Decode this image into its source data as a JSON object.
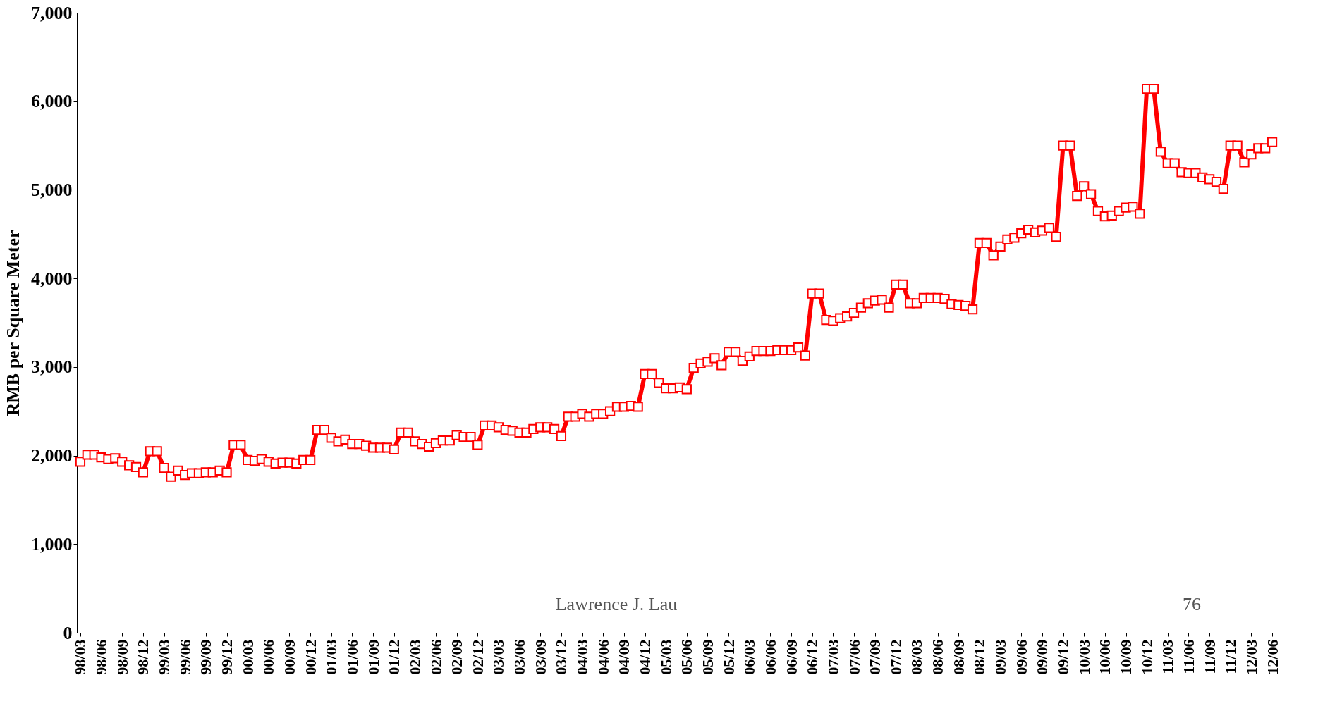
{
  "chart_data": {
    "type": "line",
    "ylabel": "RMB per Square Meter",
    "categories": [
      "98/03",
      null,
      null,
      "98/06",
      null,
      null,
      "98/09",
      null,
      null,
      "98/12",
      null,
      null,
      "99/03",
      null,
      null,
      "99/06",
      null,
      null,
      "99/09",
      null,
      null,
      "99/12",
      null,
      null,
      "00/03",
      null,
      null,
      "00/06",
      null,
      null,
      "00/09",
      null,
      null,
      "00/12",
      null,
      null,
      "01/03",
      null,
      null,
      "01/06",
      null,
      null,
      "01/09",
      null,
      null,
      "01/12",
      null,
      null,
      "02/03",
      null,
      null,
      "02/06",
      null,
      null,
      "02/09",
      null,
      null,
      "02/12",
      null,
      null,
      "03/03",
      null,
      null,
      "03/06",
      null,
      null,
      "03/09",
      null,
      null,
      "03/12",
      null,
      null,
      "04/03",
      null,
      null,
      "04/06",
      null,
      null,
      "04/09",
      null,
      null,
      "04/12",
      null,
      null,
      "05/03",
      null,
      null,
      "05/06",
      null,
      null,
      "05/09",
      null,
      null,
      "05/12",
      null,
      null,
      "06/03",
      null,
      null,
      "06/06",
      null,
      null,
      "06/09",
      null,
      null,
      "06/12",
      null,
      null,
      "07/03",
      null,
      null,
      "07/06",
      null,
      null,
      "07/09",
      null,
      null,
      "07/12",
      null,
      null,
      "08/03",
      null,
      null,
      "08/06",
      null,
      null,
      "08/09",
      null,
      null,
      "08/12",
      null,
      null,
      "09/03",
      null,
      null,
      "09/06",
      null,
      null,
      "09/09",
      null,
      null,
      "09/12",
      null,
      null,
      "10/03",
      null,
      null,
      "10/06",
      null,
      null,
      "10/09",
      null,
      null,
      "10/12",
      null,
      null,
      "11/03",
      null,
      null,
      "11/06",
      null,
      null,
      "11/09",
      null,
      null,
      "11/12",
      null,
      null,
      "12/03",
      null,
      null,
      "12/06"
    ],
    "series": [
      {
        "color": "#ff0000",
        "values": [
          1930,
          2010,
          2010,
          1980,
          1960,
          1970,
          1930,
          1890,
          1870,
          1810,
          2050,
          2050,
          1860,
          1760,
          1830,
          1780,
          1800,
          1800,
          1810,
          1810,
          1830,
          1810,
          2120,
          2120,
          1950,
          1940,
          1960,
          1930,
          1910,
          1920,
          1920,
          1910,
          1950,
          1950,
          2290,
          2290,
          2200,
          2160,
          2180,
          2130,
          2130,
          2110,
          2090,
          2090,
          2090,
          2070,
          2260,
          2260,
          2160,
          2130,
          2100,
          2140,
          2170,
          2170,
          2230,
          2210,
          2210,
          2120,
          2340,
          2340,
          2320,
          2290,
          2280,
          2260,
          2260,
          2300,
          2320,
          2320,
          2300,
          2220,
          2440,
          2440,
          2470,
          2440,
          2470,
          2470,
          2500,
          2550,
          2550,
          2560,
          2550,
          2920,
          2920,
          2820,
          2760,
          2760,
          2770,
          2750,
          2990,
          3040,
          3060,
          3100,
          3020,
          3170,
          3170,
          3070,
          3120,
          3180,
          3180,
          3180,
          3190,
          3190,
          3190,
          3220,
          3130,
          3830,
          3830,
          3530,
          3520,
          3550,
          3570,
          3610,
          3670,
          3720,
          3750,
          3760,
          3670,
          3930,
          3930,
          3720,
          3720,
          3780,
          3780,
          3780,
          3770,
          3710,
          3700,
          3690,
          3650,
          4400,
          4400,
          4260,
          4360,
          4440,
          4460,
          4510,
          4550,
          4520,
          4540,
          4570,
          4470,
          5500,
          5500,
          4930,
          5040,
          4950,
          4760,
          4700,
          4710,
          4760,
          4800,
          4810,
          4730,
          6140,
          6140,
          5430,
          5300,
          5300,
          5200,
          5190,
          5190,
          5140,
          5120,
          5090,
          5010,
          5500,
          5500,
          5310,
          5400,
          5470,
          5470,
          5540
        ]
      }
    ],
    "ylim": [
      0,
      7000
    ],
    "yticks": [
      {
        "value": 0,
        "label": "0"
      },
      {
        "value": 1000,
        "label": "1,000"
      },
      {
        "value": 2000,
        "label": "2,000"
      },
      {
        "value": 3000,
        "label": "3,000"
      },
      {
        "value": 4000,
        "label": "4,000"
      },
      {
        "value": 5000,
        "label": "5,000"
      },
      {
        "value": 6000,
        "label": "6,000"
      },
      {
        "value": 7000,
        "label": "7,000"
      }
    ],
    "marker": "square",
    "line_style": "solid",
    "grid": false,
    "annotations": [
      "Lawrence J. Lau",
      "76"
    ]
  }
}
